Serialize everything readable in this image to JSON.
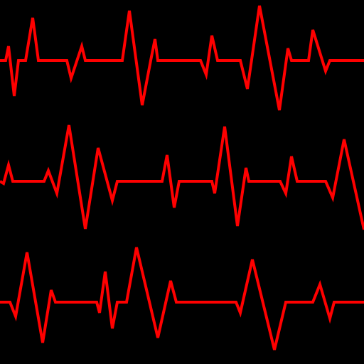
{
  "colors": {
    "background": "#000000",
    "trace": "#ff0000"
  },
  "traces": [
    {
      "name": "ecg-trace-top"
    },
    {
      "name": "ecg-trace-middle"
    },
    {
      "name": "ecg-trace-bottom"
    }
  ]
}
